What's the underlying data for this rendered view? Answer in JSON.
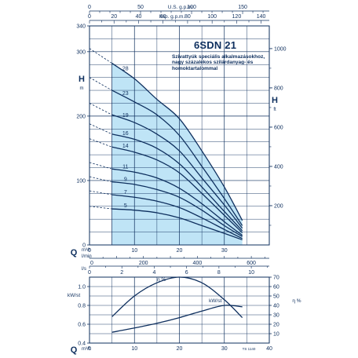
{
  "title": "6SDN 21",
  "subtitle": "Szivattyúk speciális alkalmazásokhoz, nagy százalékos szilárdanyag- és homoktartalommal",
  "colors": {
    "ink": "#0e2f5e",
    "fill": "#bfe4f6",
    "grid": "#0e2f5e"
  },
  "top_axes": {
    "usgpm": {
      "label": "U.S. g.p.m.",
      "ticks": [
        "0",
        "50",
        "100",
        "150"
      ]
    },
    "impgpm": {
      "label": "Imp. g.p.m.",
      "ticks": [
        "0",
        "20",
        "40",
        "60",
        "80",
        "100",
        "120",
        "140"
      ]
    }
  },
  "left_axis": {
    "letter": "H",
    "unit": "m",
    "ticks": [
      "0",
      "100",
      "200",
      "300",
      "340"
    ]
  },
  "right_axis": {
    "letter": "H",
    "unit": "ft",
    "ticks": [
      "200",
      "400",
      "600",
      "800",
      "1000"
    ]
  },
  "bottom_axes": {
    "q_letter": "Q",
    "m3h_unit": "m³/h",
    "lmin_unit": "l/min",
    "ls_unit": "l/s",
    "m3h_ticks": [
      "0",
      "10",
      "20",
      "30"
    ],
    "lmin_ticks": [
      "0",
      "200",
      "400",
      "600"
    ],
    "ls_ticks": [
      "0",
      "2",
      "4",
      "6",
      "8",
      "10"
    ]
  },
  "lower_axes": {
    "left_label": "kW/st",
    "left_ticks": [
      "0.4",
      "0.6",
      "0.8",
      "1.0"
    ],
    "right_label": "η %",
    "right_ticks": [
      "10",
      "20",
      "30",
      "40",
      "50",
      "60",
      "70"
    ],
    "q_letter": "Q",
    "m3h_unit": "m³/h",
    "m3h_ticks": [
      "0",
      "10",
      "20",
      "30",
      "40"
    ],
    "eta_curve_label": "η %",
    "kw_curve_label": "kW/st",
    "code": "TS 1140"
  },
  "chart_data": [
    {
      "type": "line",
      "xlabel": "Q (m³/h)",
      "ylabel": "H (m)",
      "xlim": [
        0,
        40
      ],
      "ylim": [
        0,
        340
      ],
      "operating_range": [
        5,
        34
      ],
      "series": [
        {
          "name": "28",
          "shutoff": 305,
          "x": [
            5,
            10,
            15,
            20,
            25,
            30,
            34
          ],
          "values": [
            282,
            258,
            226,
            196,
            146,
            90,
            38
          ]
        },
        {
          "name": "23",
          "shutoff": 260,
          "x": [
            5,
            10,
            15,
            20,
            25,
            30,
            34
          ],
          "values": [
            240,
            222,
            202,
            170,
            122,
            72,
            30
          ]
        },
        {
          "name": "19",
          "shutoff": 220,
          "x": [
            5,
            10,
            15,
            20,
            25,
            30,
            34
          ],
          "values": [
            202,
            190,
            172,
            146,
            104,
            62,
            26
          ]
        },
        {
          "name": "16",
          "shutoff": 188,
          "x": [
            5,
            10,
            15,
            20,
            25,
            30,
            34
          ],
          "values": [
            172,
            164,
            150,
            126,
            90,
            52,
            22
          ]
        },
        {
          "name": "14",
          "shutoff": 165,
          "x": [
            5,
            10,
            15,
            20,
            25,
            30,
            34
          ],
          "values": [
            152,
            144,
            132,
            112,
            80,
            46,
            19
          ]
        },
        {
          "name": "11",
          "shutoff": 128,
          "x": [
            5,
            10,
            15,
            20,
            25,
            30,
            34
          ],
          "values": [
            118,
            113,
            104,
            88,
            64,
            36,
            15
          ]
        },
        {
          "name": "9",
          "shutoff": 106,
          "x": [
            5,
            10,
            15,
            20,
            25,
            30,
            34
          ],
          "values": [
            98,
            94,
            86,
            74,
            54,
            30,
            13
          ]
        },
        {
          "name": "7",
          "shutoff": 84,
          "x": [
            5,
            10,
            15,
            20,
            25,
            30,
            34
          ],
          "values": [
            78,
            74,
            68,
            58,
            42,
            24,
            10
          ]
        },
        {
          "name": "5",
          "shutoff": 60,
          "x": [
            5,
            10,
            15,
            20,
            25,
            30,
            34
          ],
          "values": [
            56,
            54,
            50,
            42,
            30,
            18,
            8
          ]
        }
      ],
      "labeled_series_x": 8
    },
    {
      "type": "line",
      "xlabel": "Q (m³/h)",
      "xlim": [
        0,
        40
      ],
      "series": [
        {
          "name": "η %",
          "axis": "right",
          "ylim": [
            0,
            70
          ],
          "x": [
            5,
            10,
            15,
            20,
            25,
            30,
            34
          ],
          "values": [
            28,
            50,
            64,
            70,
            64,
            46,
            27
          ]
        },
        {
          "name": "kW/st",
          "axis": "left",
          "ylim": [
            0.4,
            1.1
          ],
          "x": [
            5,
            10,
            15,
            20,
            25,
            30,
            34
          ],
          "values": [
            0.515,
            0.56,
            0.61,
            0.67,
            0.74,
            0.8,
            0.785
          ]
        }
      ]
    }
  ]
}
